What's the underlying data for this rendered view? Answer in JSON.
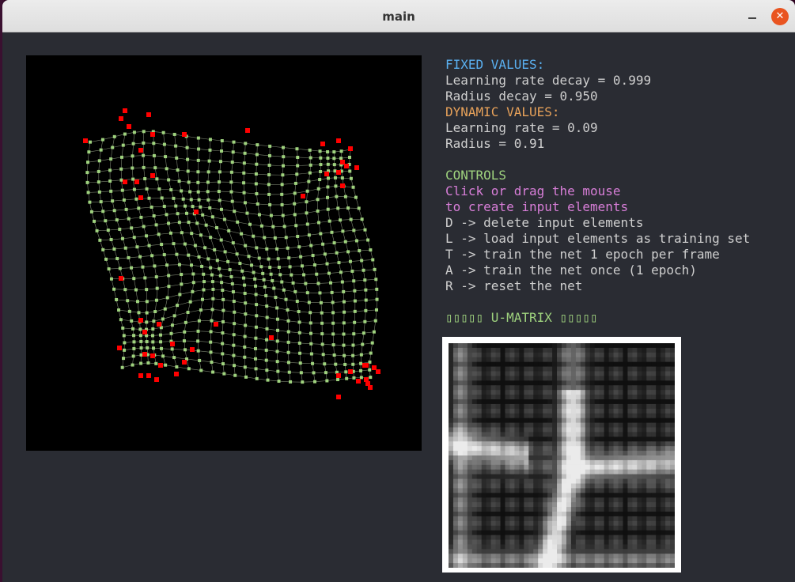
{
  "window": {
    "title": "main"
  },
  "fixed": {
    "heading": "FIXED VALUES:",
    "lr_decay": "Learning rate decay = 0.999",
    "radius_decay": "Radius decay = 0.950"
  },
  "dynamic": {
    "heading": "DYNAMIC VALUES:",
    "lr": "Learning rate = 0.09",
    "radius": "Radius = 0.91"
  },
  "controls": {
    "heading": "CONTROLS",
    "hint1": "Click or drag the mouse",
    "hint2": "to create input elements",
    "d": "D -> delete input elements",
    "l": "L -> load input elements as training set",
    "t": "T -> train the net 1 epoch per frame",
    "a": "A -> train the net once (1 epoch)",
    "r": "R -> reset the net"
  },
  "umatrix": {
    "label": "▯▯▯▯▯ U-MATRIX ▯▯▯▯▯"
  },
  "colors": {
    "node": "#9fd37e",
    "input": "#ff0000",
    "canvas_bg": "#000000"
  },
  "icons": {
    "minimize": "minimize-icon",
    "maximize": "maximize-icon",
    "close": "close-icon"
  }
}
